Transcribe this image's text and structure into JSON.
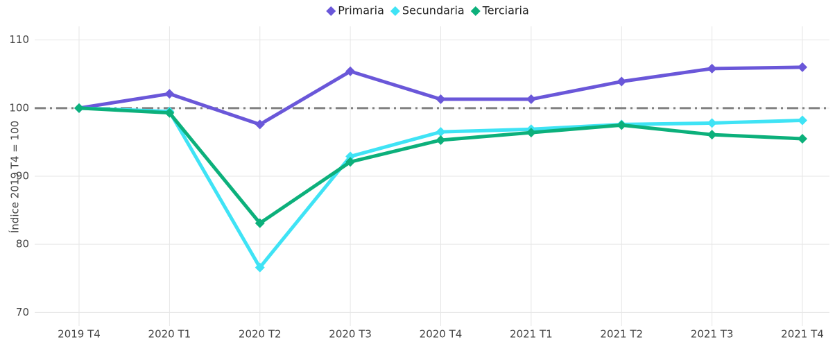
{
  "chart_data": {
    "type": "line",
    "y_label": "Índice 2019 T4 = 100",
    "categories": [
      "2019 T4",
      "2020 T1",
      "2020 T2",
      "2020 T3",
      "2020 T4",
      "2021 T1",
      "2021 T2",
      "2021 T3",
      "2021 T4"
    ],
    "series": [
      {
        "name": "Primaria",
        "color": "#6a57d9",
        "values": [
          100,
          102.1,
          97.6,
          105.4,
          101.3,
          101.3,
          103.9,
          105.8,
          106.0
        ]
      },
      {
        "name": "Secundaria",
        "color": "#3fe3f5",
        "values": [
          100,
          99.5,
          76.6,
          92.9,
          96.5,
          96.9,
          97.6,
          97.8,
          98.2
        ]
      },
      {
        "name": "Terciaria",
        "color": "#0cb07b",
        "values": [
          100,
          99.3,
          83.1,
          92.1,
          95.3,
          96.4,
          97.5,
          96.1,
          95.5
        ]
      }
    ],
    "reference_line": 100,
    "ylim": [
      68,
      112
    ],
    "yticks": [
      70,
      80,
      90,
      100,
      110
    ],
    "grid": true,
    "legend": "top"
  }
}
